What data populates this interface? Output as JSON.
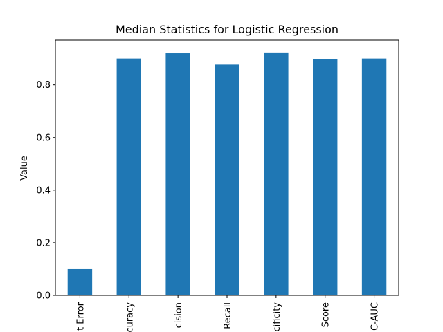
{
  "chart_data": {
    "type": "bar",
    "title": "Median Statistics for Logistic Regression",
    "xlabel": "",
    "ylabel": "Value",
    "categories": [
      "t Error",
      "curacy",
      "cision",
      "Recall",
      "cificity",
      "Score",
      "C-AUC"
    ],
    "values": [
      0.1,
      0.9,
      0.92,
      0.877,
      0.923,
      0.898,
      0.9
    ],
    "ylim": [
      0,
      0.97
    ],
    "yticks": [
      "0.0",
      "0.2",
      "0.4",
      "0.6",
      "0.8"
    ],
    "ytick_values": [
      0,
      0.2,
      0.4,
      0.6,
      0.8
    ],
    "bar_color": "#1f77b4",
    "grid": false,
    "legend": "none"
  }
}
